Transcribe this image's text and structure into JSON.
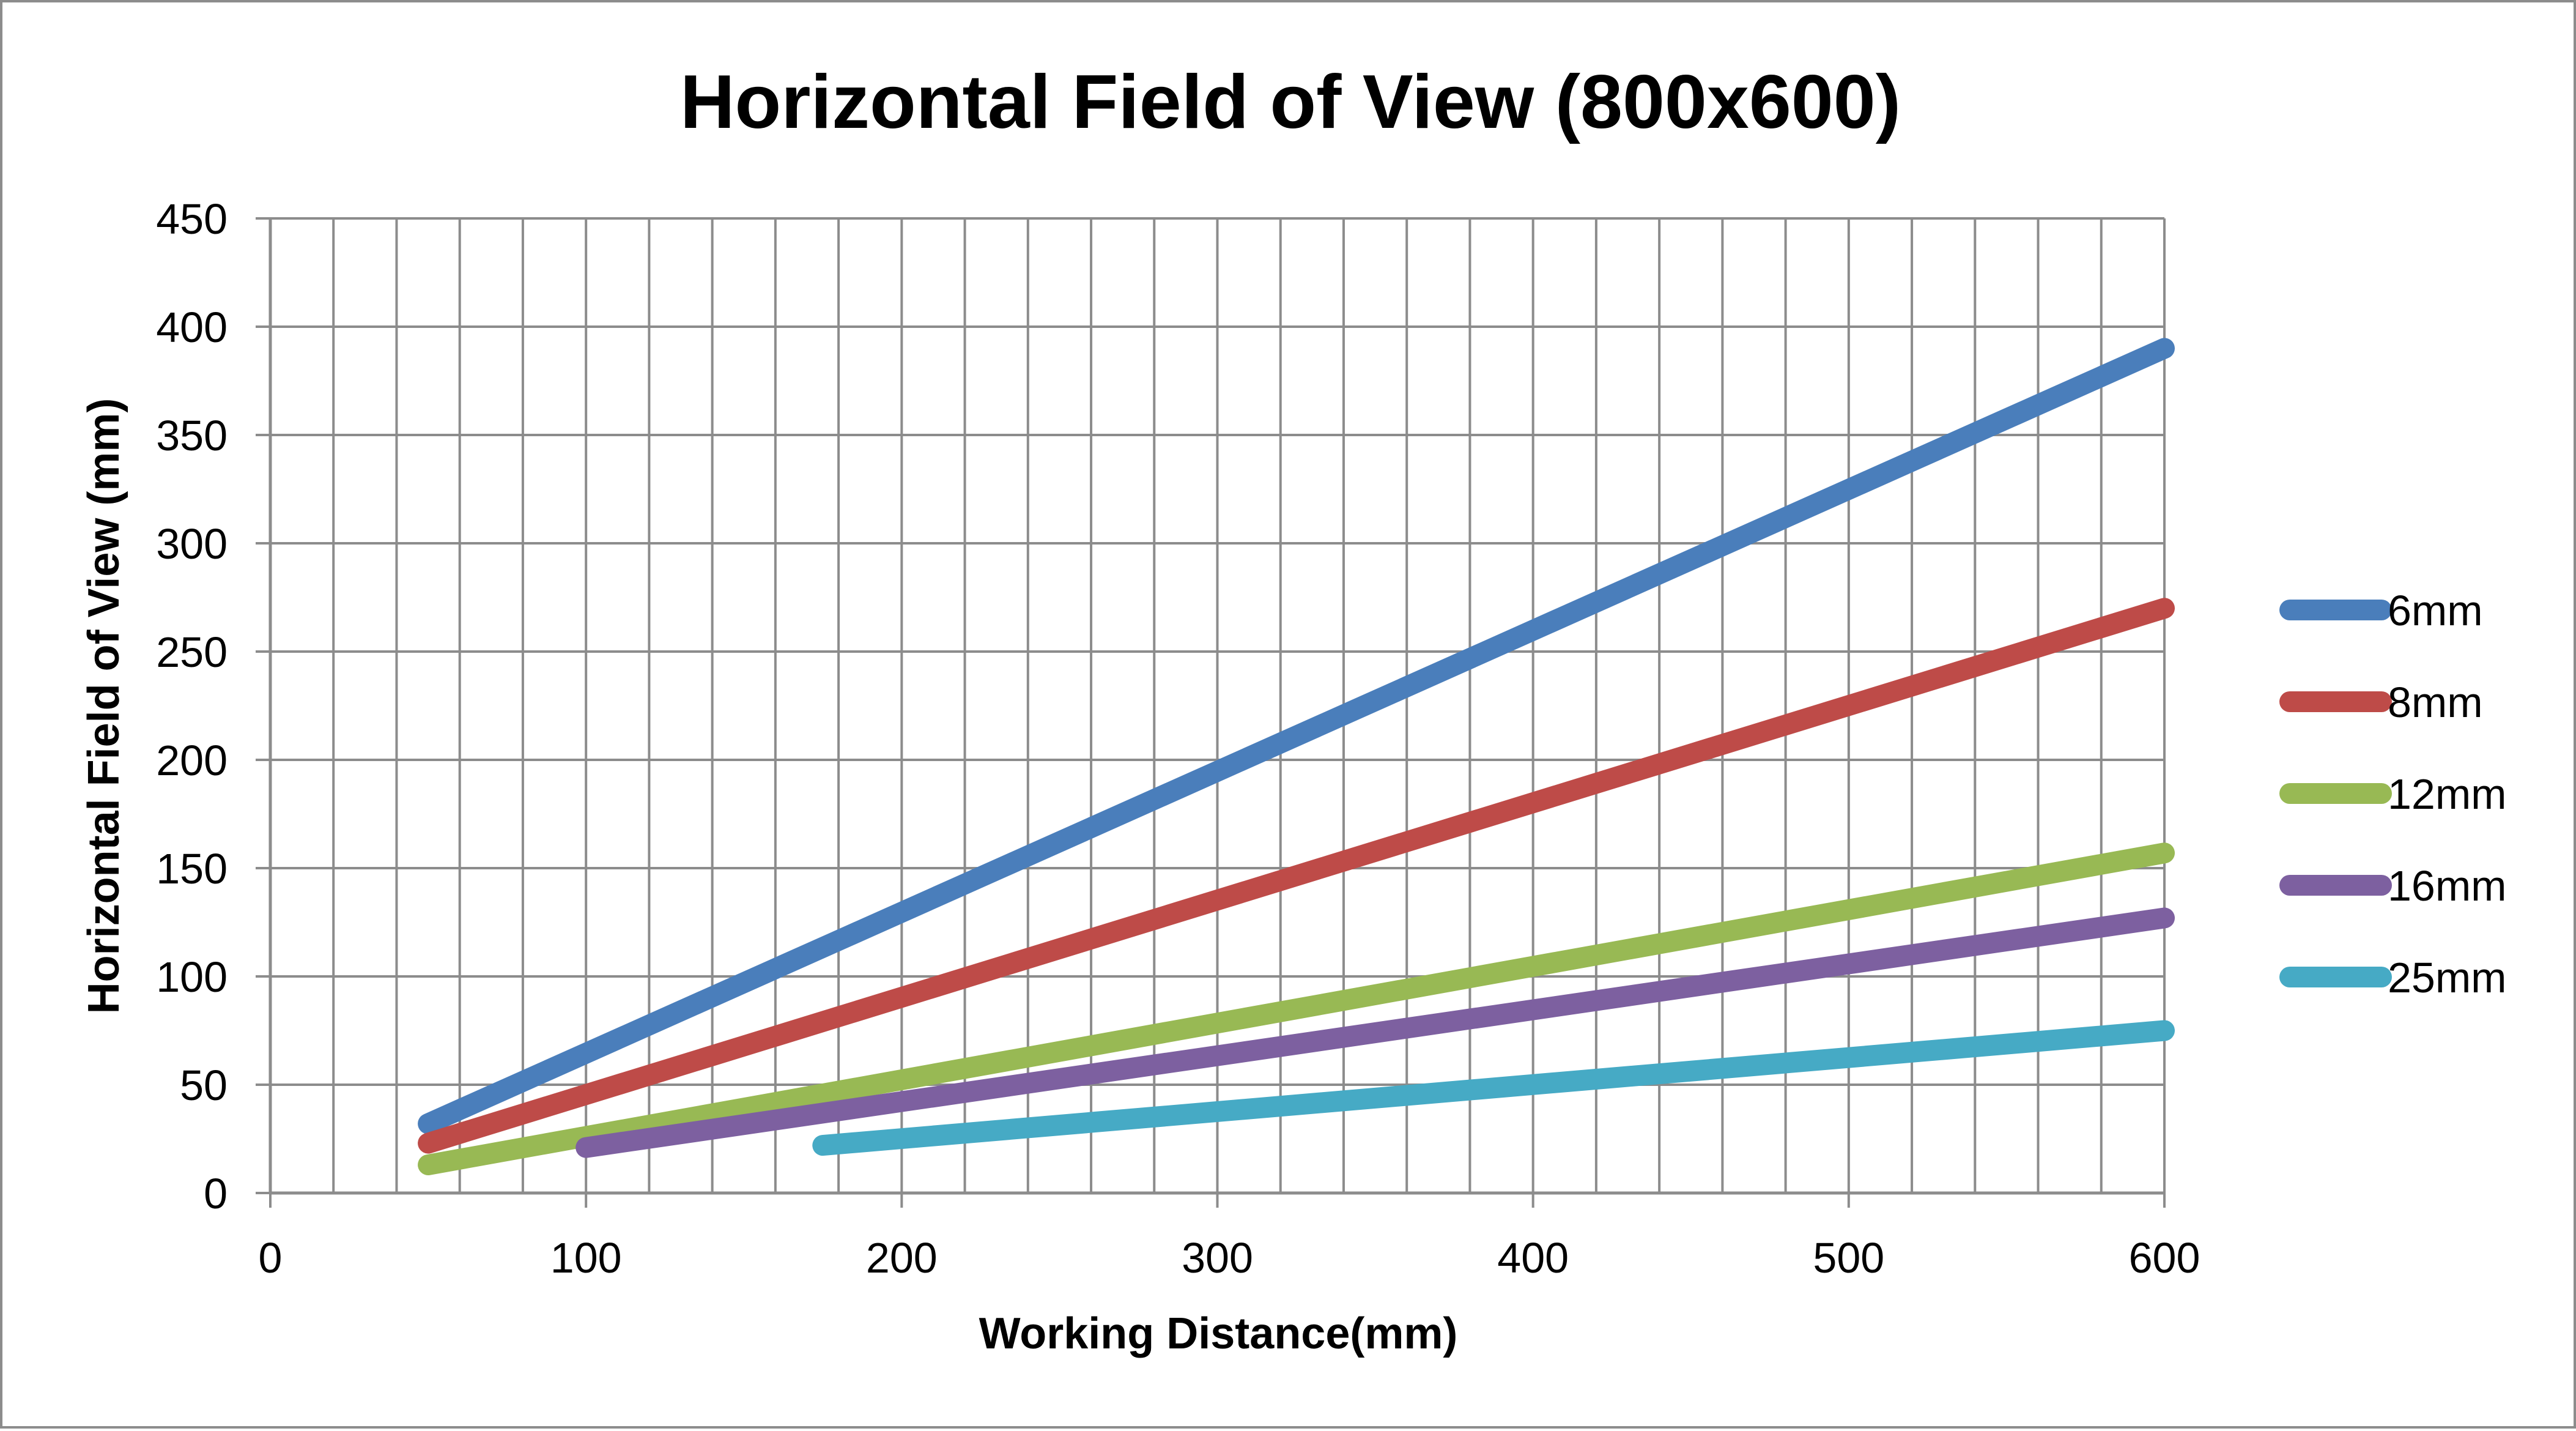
{
  "chart_data": {
    "type": "line",
    "title": "Horizontal Field of View (800x600)",
    "xlabel": "Working Distance(mm)",
    "ylabel": "Horizontal Field of View (mm)",
    "xlim": [
      0,
      600
    ],
    "ylim": [
      0,
      450
    ],
    "x_major_ticks": [
      0,
      100,
      200,
      300,
      400,
      500,
      600
    ],
    "x_tick_labels": [
      "0",
      "100",
      "200",
      "300",
      "400",
      "500",
      "600"
    ],
    "y_major_ticks": [
      0,
      50,
      100,
      150,
      200,
      250,
      300,
      350,
      400,
      450
    ],
    "y_tick_labels": [
      "0",
      "50",
      "100",
      "150",
      "200",
      "250",
      "300",
      "350",
      "400",
      "450"
    ],
    "x_grid_step": 20,
    "grid": true,
    "legend_position": "right",
    "series": [
      {
        "name": "6mm",
        "color": "#4a7ebb",
        "x": [
          50,
          600
        ],
        "y": [
          32,
          390
        ]
      },
      {
        "name": "8mm",
        "color": "#be4b48",
        "x": [
          50,
          600
        ],
        "y": [
          23,
          270
        ]
      },
      {
        "name": "12mm",
        "color": "#98b954",
        "x": [
          50,
          600
        ],
        "y": [
          13,
          157
        ]
      },
      {
        "name": "16mm",
        "color": "#7d60a0",
        "x": [
          100,
          600
        ],
        "y": [
          21,
          127
        ]
      },
      {
        "name": "25mm",
        "color": "#46aac5",
        "x": [
          175,
          600
        ],
        "y": [
          22,
          75
        ]
      }
    ]
  }
}
